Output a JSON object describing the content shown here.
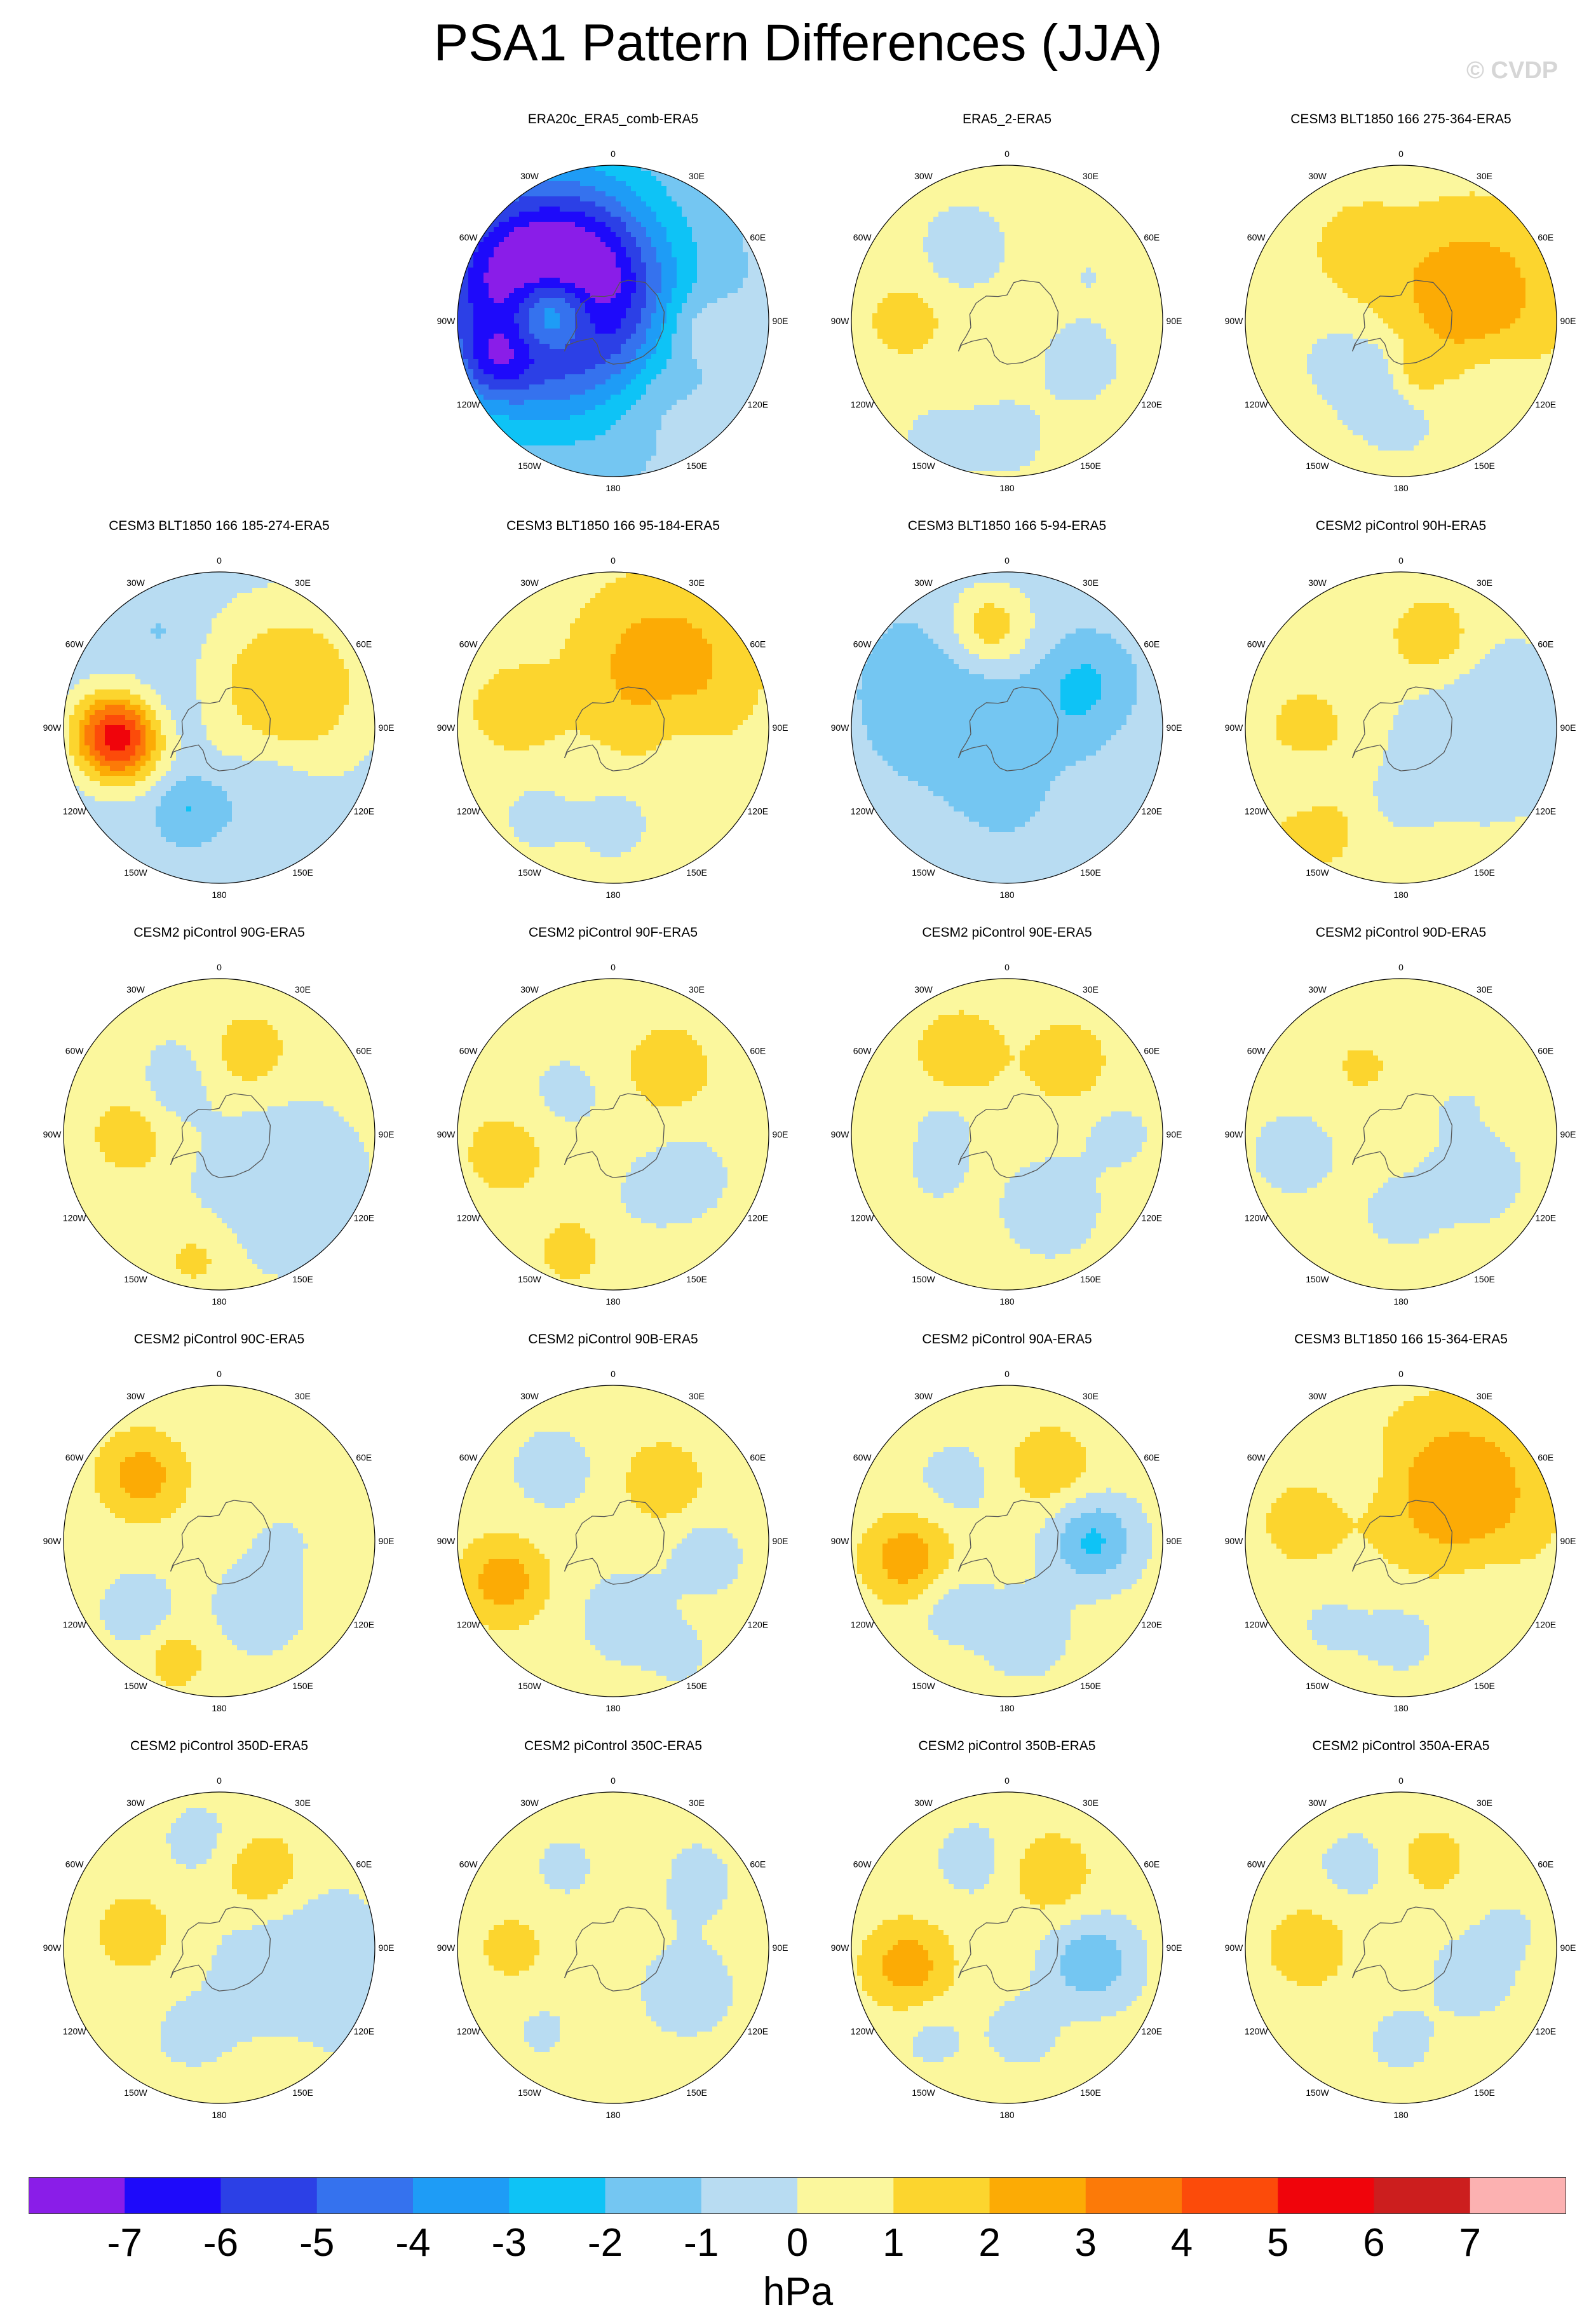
{
  "title": "PSA1 Pattern Differences (JJA)",
  "watermark": "© CVDP",
  "units": "hPa",
  "chart_data": {
    "type": "heatmap",
    "projection": "south-polar-stereographic",
    "units": "hPa",
    "lon_labels": [
      "0",
      "30E",
      "60E",
      "90E",
      "120E",
      "150E",
      "180",
      "150W",
      "120W",
      "90W",
      "60W",
      "30W"
    ],
    "colorbar": {
      "levels": [
        -7,
        -6,
        -5,
        -4,
        -3,
        -2,
        -1,
        0,
        1,
        2,
        3,
        4,
        5,
        6,
        7
      ],
      "colors": [
        "#8a1de8",
        "#1e0afa",
        "#2c40e6",
        "#3572ee",
        "#1e9cf6",
        "#0ec3f6",
        "#74c6f2",
        "#b8dcf2",
        "#fbf79d",
        "#fcd52e",
        "#fcab05",
        "#fc7a08",
        "#fc4b0a",
        "#f0040b",
        "#cc1e1e",
        "#fcb1b1"
      ],
      "tick_labels": [
        "-7",
        "-6",
        "-5",
        "-4",
        "-3",
        "-2",
        "-1",
        "0",
        "1",
        "2",
        "3",
        "4",
        "5",
        "6",
        "7"
      ]
    },
    "panels": [
      {
        "title": "ERA20c_ERA5_comb-ERA5",
        "row": 0,
        "col": 1,
        "background": -0.6,
        "blobs": [
          [
            -100,
            40,
            1,
            6.5
          ],
          [
            -125,
            42,
            2,
            -5.5
          ],
          [
            -110,
            50,
            3,
            -5
          ],
          [
            -70,
            80,
            0.8,
            -2
          ],
          [
            85,
            55,
            0.9,
            1.2
          ],
          [
            30,
            60,
            1,
            0.6
          ],
          [
            -150,
            70,
            1,
            0.4
          ]
        ]
      },
      {
        "title": "ERA5_2-ERA5",
        "row": 0,
        "col": 2,
        "background": 0.5,
        "blobs": [
          [
            0,
            75,
            1,
            -0.9
          ],
          [
            -90,
            65,
            0.8,
            1.2
          ],
          [
            -150,
            55,
            1,
            -1.2
          ],
          [
            60,
            55,
            1,
            -1
          ],
          [
            -30,
            90,
            1,
            -0.8
          ],
          [
            120,
            60,
            1,
            -0.5
          ]
        ]
      },
      {
        "title": "CESM3 BLT1850 166 275-364-ERA5",
        "row": 0,
        "col": 3,
        "background": 0.4,
        "blobs": [
          [
            0,
            60,
            1,
            -0.9
          ],
          [
            -30,
            40,
            1,
            -1.3
          ],
          [
            110,
            48,
            2,
            2.4
          ],
          [
            -150,
            55,
            1,
            1.2
          ],
          [
            10,
            38,
            0.6,
            1.1
          ],
          [
            60,
            70,
            0.9,
            -0.8
          ],
          [
            -60,
            50,
            0.7,
            -0.6
          ]
        ]
      },
      {
        "title": "CESM3 BLT1850 166 185-274-ERA5",
        "row": 1,
        "col": 0,
        "background": -0.6,
        "blobs": [
          [
            -85,
            65,
            1,
            6.5
          ],
          [
            120,
            52,
            2,
            2.6
          ],
          [
            -20,
            55,
            0.8,
            -1.5
          ],
          [
            -100,
            40,
            1,
            -1
          ],
          [
            40,
            50,
            1,
            -0.8
          ],
          [
            -150,
            70,
            0.8,
            -0.6
          ]
        ]
      },
      {
        "title": "CESM3 BLT1850 166 95-184-ERA5",
        "row": 1,
        "col": 1,
        "background": 0.4,
        "blobs": [
          [
            140,
            50,
            2,
            2.3
          ],
          [
            -100,
            65,
            1,
            1.3
          ],
          [
            0,
            60,
            1,
            -0.8
          ],
          [
            -40,
            75,
            0.7,
            -1
          ],
          [
            60,
            60,
            0.9,
            -0.6
          ],
          [
            100,
            40,
            0.8,
            -0.6
          ]
        ]
      },
      {
        "title": "CESM3 BLT1850 166 5-94-ERA5",
        "row": 1,
        "col": 2,
        "background": -0.6,
        "blobs": [
          [
            -170,
            65,
            1,
            2.6
          ],
          [
            -120,
            40,
            2,
            -1.3
          ],
          [
            120,
            60,
            1,
            -1.4
          ],
          [
            0,
            40,
            1,
            -0.8
          ],
          [
            90,
            40,
            1,
            -0.6
          ],
          [
            40,
            80,
            1,
            0.4
          ]
        ]
      },
      {
        "title": "CESM2 piControl 90H-ERA5",
        "row": 1,
        "col": 3,
        "background": 0.4,
        "blobs": [
          [
            90,
            55,
            2,
            -1.4
          ],
          [
            160,
            60,
            1,
            1.6
          ],
          [
            -90,
            60,
            0.9,
            1.2
          ],
          [
            -60,
            72,
            0.7,
            -0.8
          ],
          [
            0,
            45,
            0.8,
            -0.6
          ],
          [
            -40,
            85,
            1,
            1.2
          ]
        ]
      },
      {
        "title": "CESM2 piControl 90G-ERA5",
        "row": 2,
        "col": 0,
        "background": 0.4,
        "blobs": [
          [
            50,
            50,
            2,
            -1.3
          ],
          [
            -90,
            55,
            1,
            1.3
          ],
          [
            160,
            55,
            1,
            1.3
          ],
          [
            -10,
            80,
            0.9,
            1
          ],
          [
            -150,
            50,
            1,
            -0.6
          ],
          [
            -120,
            40,
            0.8,
            -0.6
          ]
        ]
      },
      {
        "title": "CESM2 piControl 90F-ERA5",
        "row": 2,
        "col": 1,
        "background": 0.4,
        "blobs": [
          [
            60,
            55,
            1,
            -0.9
          ],
          [
            140,
            55,
            1,
            1.4
          ],
          [
            -80,
            70,
            1,
            1.2
          ],
          [
            -130,
            40,
            1,
            -0.7
          ],
          [
            30,
            45,
            0.8,
            -0.6
          ],
          [
            -20,
            80,
            0.8,
            1.1
          ]
        ]
      },
      {
        "title": "CESM2 piControl 90E-ERA5",
        "row": 2,
        "col": 2,
        "background": 0.4,
        "blobs": [
          [
            30,
            55,
            1,
            -1.4
          ],
          [
            -150,
            60,
            1,
            1.5
          ],
          [
            140,
            60,
            1,
            1.3
          ],
          [
            90,
            70,
            0.9,
            -0.7
          ],
          [
            -60,
            50,
            0.8,
            -0.6
          ],
          [
            -100,
            40,
            0.8,
            -0.7
          ]
        ]
      },
      {
        "title": "CESM2 piControl 90D-ERA5",
        "row": 2,
        "col": 3,
        "background": 0.4,
        "blobs": [
          [
            60,
            55,
            1,
            -1.2
          ],
          [
            -80,
            70,
            1,
            -0.9
          ],
          [
            0,
            50,
            1,
            -0.7
          ],
          [
            -150,
            50,
            0.8,
            0.8
          ],
          [
            150,
            50,
            0.7,
            0.6
          ],
          [
            120,
            40,
            0.7,
            -0.6
          ]
        ]
      },
      {
        "title": "CESM2 piControl 90C-ERA5",
        "row": 3,
        "col": 0,
        "background": 0.4,
        "blobs": [
          [
            -130,
            65,
            1,
            2.1
          ],
          [
            30,
            50,
            1,
            -1.3
          ],
          [
            -50,
            68,
            0.8,
            -1.3
          ],
          [
            150,
            55,
            1,
            0.6
          ],
          [
            -20,
            80,
            0.8,
            1.1
          ],
          [
            90,
            40,
            0.8,
            -0.6
          ]
        ]
      },
      {
        "title": "CESM2 piControl 90B-ERA5",
        "row": 3,
        "col": 1,
        "background": 0.4,
        "blobs": [
          [
            -70,
            75,
            1,
            2.2
          ],
          [
            10,
            50,
            1,
            -1.2
          ],
          [
            80,
            60,
            0.8,
            -1.2
          ],
          [
            140,
            50,
            1,
            1.3
          ],
          [
            -140,
            60,
            1,
            -0.9
          ],
          [
            30,
            85,
            0.7,
            -0.7
          ]
        ]
      },
      {
        "title": "CESM2 piControl 90A-ERA5",
        "row": 3,
        "col": 2,
        "background": 0.4,
        "blobs": [
          [
            -80,
            65,
            1,
            2.3
          ],
          [
            90,
            55,
            1,
            -2.6
          ],
          [
            150,
            55,
            1,
            1.4
          ],
          [
            10,
            60,
            1,
            -1.2
          ],
          [
            -140,
            50,
            1,
            -0.8
          ],
          [
            -40,
            55,
            0.8,
            -1.1
          ]
        ]
      },
      {
        "title": "CESM3 BLT1850 166 15-364-ERA5",
        "row": 3,
        "col": 3,
        "background": 0.4,
        "blobs": [
          [
            130,
            50,
            2,
            2.5
          ],
          [
            -100,
            65,
            0.9,
            1.3
          ],
          [
            0,
            60,
            1,
            -0.8
          ],
          [
            60,
            60,
            1,
            -0.6
          ],
          [
            -40,
            70,
            0.8,
            -0.6
          ],
          [
            -150,
            50,
            0.8,
            -0.6
          ]
        ]
      },
      {
        "title": "CESM2 piControl 350D-ERA5",
        "row": 4,
        "col": 0,
        "background": 0.4,
        "blobs": [
          [
            75,
            55,
            2,
            -1.3
          ],
          [
            150,
            55,
            1,
            1.6
          ],
          [
            -100,
            55,
            1,
            1.2
          ],
          [
            -170,
            70,
            0.9,
            -0.8
          ],
          [
            -20,
            60,
            0.9,
            -0.6
          ],
          [
            30,
            85,
            0.8,
            0.5
          ]
        ]
      },
      {
        "title": "CESM2 piControl 350C-ERA5",
        "row": 4,
        "col": 1,
        "background": 0.4,
        "blobs": [
          [
            60,
            55,
            1,
            -1.2
          ],
          [
            130,
            65,
            1,
            -0.9
          ],
          [
            -90,
            65,
            0.8,
            1.1
          ],
          [
            -150,
            60,
            0.8,
            -0.7
          ],
          [
            160,
            50,
            0.8,
            0.6
          ],
          [
            -40,
            70,
            0.7,
            -0.6
          ]
        ]
      },
      {
        "title": "CESM2 piControl 350B-ERA5",
        "row": 4,
        "col": 2,
        "background": 0.4,
        "blobs": [
          [
            -80,
            65,
            1,
            2.2
          ],
          [
            80,
            55,
            1,
            -2.3
          ],
          [
            150,
            55,
            1,
            1.4
          ],
          [
            -160,
            60,
            1,
            -0.8
          ],
          [
            10,
            55,
            0.9,
            -0.8
          ],
          [
            -40,
            75,
            0.8,
            -0.7
          ]
        ]
      },
      {
        "title": "CESM2 piControl 350A-ERA5",
        "row": 4,
        "col": 3,
        "background": 0.4,
        "blobs": [
          [
            -90,
            60,
            1,
            1.3
          ],
          [
            160,
            60,
            0.8,
            1.2
          ],
          [
            70,
            50,
            1,
            -0.9
          ],
          [
            0,
            60,
            1,
            -0.6
          ],
          [
            -150,
            60,
            0.9,
            -0.8
          ],
          [
            100,
            70,
            0.7,
            -0.6
          ]
        ]
      }
    ]
  }
}
